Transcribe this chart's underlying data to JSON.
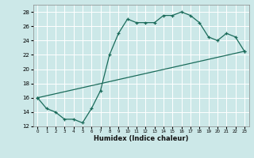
{
  "title": "",
  "xlabel": "Humidex (Indice chaleur)",
  "ylabel": "",
  "xlim": [
    -0.5,
    23.5
  ],
  "ylim": [
    12,
    29
  ],
  "yticks": [
    12,
    14,
    16,
    18,
    20,
    22,
    24,
    26,
    28
  ],
  "xticks": [
    0,
    1,
    2,
    3,
    4,
    5,
    6,
    7,
    8,
    9,
    10,
    11,
    12,
    13,
    14,
    15,
    16,
    17,
    18,
    19,
    20,
    21,
    22,
    23
  ],
  "line_color": "#1a6b5a",
  "bg_color": "#cce8e8",
  "grid_color": "#ffffff",
  "series1_x": [
    0,
    1,
    2,
    3,
    4,
    5,
    6,
    7,
    8,
    9,
    10,
    11,
    12,
    13,
    14,
    15,
    16,
    17,
    18,
    19,
    20,
    21,
    22,
    23
  ],
  "series1_y": [
    16,
    14.5,
    14,
    13,
    13,
    12.5,
    14.5,
    17,
    22,
    25,
    27,
    26.5,
    26.5,
    26.5,
    27.5,
    27.5,
    28,
    27.5,
    26.5,
    24.5,
    24,
    25,
    24.5,
    22.5
  ],
  "series2_x": [
    0,
    23
  ],
  "series2_y": [
    16,
    22.5
  ]
}
